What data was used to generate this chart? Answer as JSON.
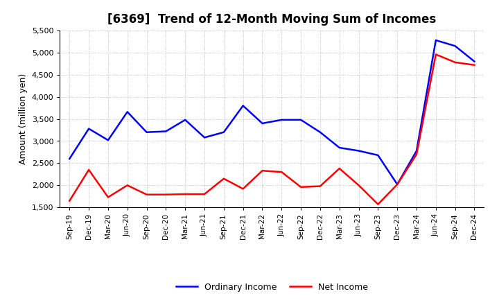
{
  "title": "[6369]  Trend of 12-Month Moving Sum of Incomes",
  "ylabel": "Amount (million yen)",
  "x_labels": [
    "Sep-19",
    "Dec-19",
    "Mar-20",
    "Jun-20",
    "Sep-20",
    "Dec-20",
    "Mar-21",
    "Jun-21",
    "Sep-21",
    "Dec-21",
    "Mar-22",
    "Jun-22",
    "Sep-22",
    "Dec-22",
    "Mar-23",
    "Jun-23",
    "Sep-23",
    "Dec-23",
    "Mar-24",
    "Jun-24",
    "Sep-24",
    "Dec-24"
  ],
  "ordinary_income": [
    2600,
    3280,
    3020,
    3660,
    3200,
    3220,
    3480,
    3080,
    3200,
    3800,
    3400,
    3480,
    3480,
    3200,
    2850,
    2780,
    2680,
    2020,
    2780,
    5280,
    5150,
    4800
  ],
  "net_income": [
    1650,
    2350,
    1730,
    2000,
    1790,
    1790,
    1800,
    1800,
    2150,
    1920,
    2330,
    2300,
    1960,
    1980,
    2380,
    2000,
    1570,
    2020,
    2700,
    4960,
    4780,
    4720
  ],
  "ordinary_color": "#0000FF",
  "net_color": "#FF0000",
  "ylim": [
    1500,
    5500
  ],
  "yticks": [
    1500,
    2000,
    2500,
    3000,
    3500,
    4000,
    4500,
    5000,
    5500
  ],
  "bg_color": "#FFFFFF",
  "grid_color": "#999999",
  "legend_labels": [
    "Ordinary Income",
    "Net Income"
  ],
  "linewidth": 1.8
}
